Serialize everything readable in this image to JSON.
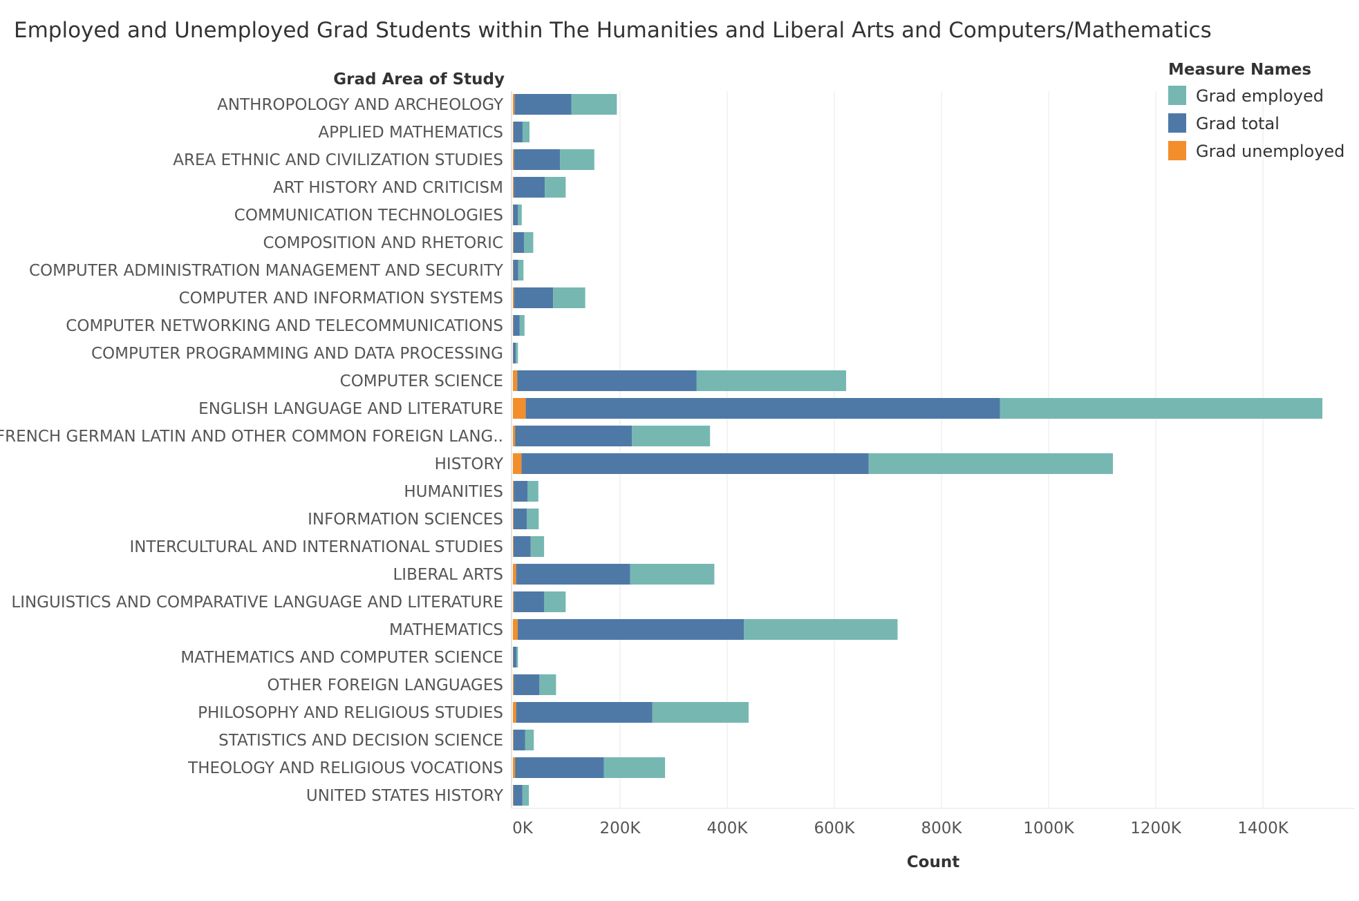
{
  "chart_data": {
    "type": "bar",
    "orientation": "horizontal",
    "stacked": true,
    "title": "Employed and Unemployed Grad Students within The Humanities and Liberal Arts and Computers/Mathematics",
    "ylabel": "Grad Area of Study",
    "xlabel": "Count",
    "xlim": [
      0,
      1500000
    ],
    "xticks": [
      0,
      200000,
      400000,
      600000,
      800000,
      1000000,
      1200000,
      1400000
    ],
    "xtick_labels": [
      "0K",
      "200K",
      "400K",
      "600K",
      "800K",
      "1000K",
      "1200K",
      "1400K"
    ],
    "grid": "vertical",
    "legend": {
      "title": "Measure Names",
      "placement": "top-right"
    },
    "categories": [
      "ANTHROPOLOGY AND ARCHEOLOGY",
      "APPLIED MATHEMATICS",
      "AREA ETHNIC AND CIVILIZATION STUDIES",
      "ART HISTORY AND CRITICISM",
      "COMMUNICATION TECHNOLOGIES",
      "COMPOSITION AND RHETORIC",
      "COMPUTER ADMINISTRATION MANAGEMENT AND SECURITY",
      "COMPUTER AND INFORMATION SYSTEMS",
      "COMPUTER NETWORKING AND TELECOMMUNICATIONS",
      "COMPUTER PROGRAMMING AND DATA PROCESSING",
      "COMPUTER SCIENCE",
      "ENGLISH LANGUAGE AND LITERATURE",
      "FRENCH GERMAN LATIN AND OTHER COMMON FOREIGN LANG..",
      "HISTORY",
      "HUMANITIES",
      "INFORMATION SCIENCES",
      "INTERCULTURAL AND INTERNATIONAL STUDIES",
      "LIBERAL ARTS",
      "LINGUISTICS AND COMPARATIVE LANGUAGE AND LITERATURE",
      "MATHEMATICS",
      "MATHEMATICS AND COMPUTER SCIENCE",
      "OTHER FOREIGN LANGUAGES",
      "PHILOSOPHY AND RELIGIOUS STUDIES",
      "STATISTICS AND DECISION SCIENCE",
      "THEOLOGY AND RELIGIOUS VOCATIONS",
      "UNITED STATES HISTORY"
    ],
    "series": [
      {
        "name": "Grad unemployed",
        "color": "#f28e2b",
        "values": [
          3000,
          1000,
          2000,
          1500,
          500,
          1000,
          700,
          2000,
          700,
          400,
          8000,
          24000,
          4000,
          16000,
          1500,
          1200,
          1200,
          6000,
          1500,
          9000,
          500,
          1500,
          6000,
          1000,
          4000,
          800
        ]
      },
      {
        "name": "Grad total",
        "color": "#4e79a7",
        "values": [
          106000,
          17000,
          86000,
          58000,
          9000,
          20000,
          9000,
          73000,
          12000,
          5000,
          335000,
          885000,
          218000,
          648000,
          26000,
          25000,
          32000,
          213000,
          57000,
          422000,
          6000,
          48000,
          254000,
          22000,
          166000,
          17000
        ]
      },
      {
        "name": "Grad employed",
        "color": "#76b7b2",
        "values": [
          85000,
          13000,
          64000,
          39000,
          7000,
          17000,
          10000,
          60000,
          9000,
          4000,
          279000,
          602000,
          146000,
          456000,
          20000,
          22000,
          25000,
          157000,
          40000,
          287000,
          3000,
          31000,
          180000,
          16000,
          114000,
          12000
        ]
      }
    ]
  }
}
